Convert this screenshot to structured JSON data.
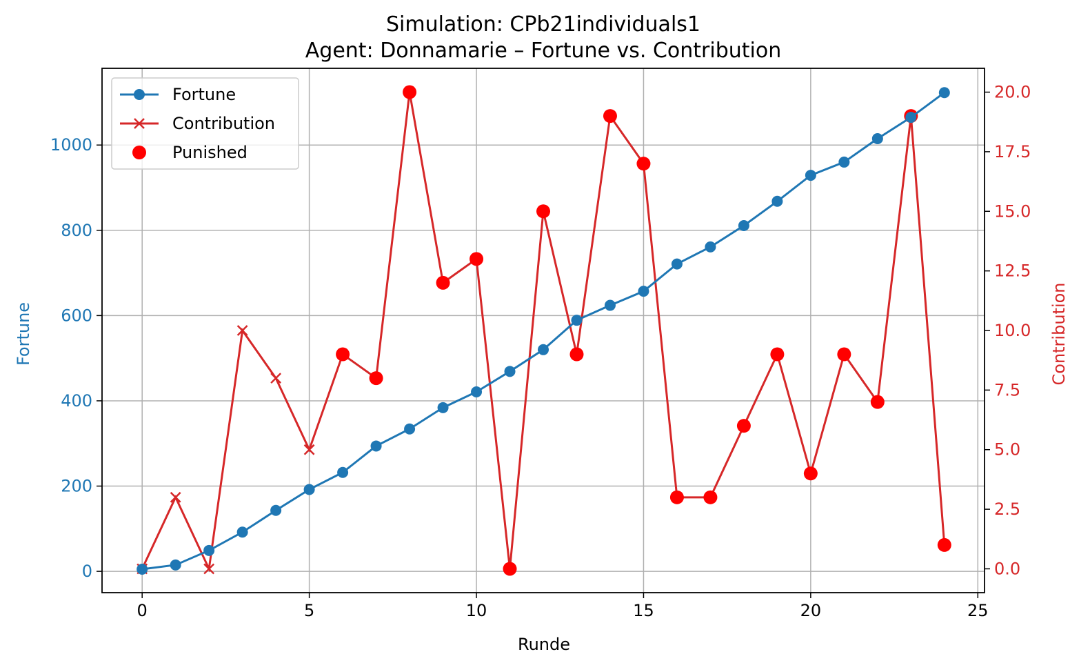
{
  "title": "Simulation: CPb21individuals1",
  "subtitle": "Agent: Donnamarie – Fortune vs. Contribution",
  "colors": {
    "fortune": "#1f77b4",
    "contribution": "#d62728",
    "punished": "#ff0000",
    "grid": "#b0b0b0",
    "axis": "#000000"
  },
  "chart_data": {
    "type": "line",
    "title": "Simulation: CPb21individuals1",
    "subtitle": "Agent: Donnamarie – Fortune vs. Contribution",
    "xlabel": "Runde",
    "ylabel_left": "Fortune",
    "ylabel_right": "Contribution",
    "xlim": [
      -1.2,
      25.2
    ],
    "ylim_left": [
      -50,
      1180
    ],
    "ylim_right": [
      -1,
      21
    ],
    "x_ticks": [
      0,
      5,
      10,
      15,
      20,
      25
    ],
    "y_left_ticks": [
      0,
      200,
      400,
      600,
      800,
      1000
    ],
    "y_right_ticks": [
      "0.0",
      "2.5",
      "5.0",
      "7.5",
      "10.0",
      "12.5",
      "15.0",
      "17.5",
      "20.0"
    ],
    "grid": true,
    "legend_position": "upper left",
    "x": [
      0,
      1,
      2,
      3,
      4,
      5,
      6,
      7,
      8,
      9,
      10,
      11,
      12,
      13,
      14,
      15,
      16,
      17,
      18,
      19,
      20,
      21,
      22,
      23,
      24
    ],
    "series": [
      {
        "name": "Fortune",
        "axis": "left",
        "marker": "circle",
        "values": [
          5,
          15,
          49,
          92,
          143,
          192,
          232,
          294,
          334,
          384,
          421,
          469,
          520,
          589,
          624,
          657,
          721,
          761,
          811,
          868,
          929,
          960,
          1015,
          1065,
          1123
        ]
      },
      {
        "name": "Contribution",
        "axis": "right",
        "marker": "x",
        "values": [
          0,
          3,
          0,
          10,
          8,
          5,
          9,
          8,
          20,
          12,
          13,
          0,
          15,
          9,
          19,
          17,
          3,
          3,
          6,
          9,
          4,
          9,
          7,
          19,
          1
        ]
      },
      {
        "name": "Punished",
        "axis": "right",
        "marker": "dot",
        "x": [
          6,
          7,
          8,
          9,
          10,
          11,
          12,
          13,
          14,
          15,
          16,
          17,
          18,
          19,
          20,
          21,
          22,
          23,
          24
        ],
        "values": [
          9,
          8,
          20,
          12,
          13,
          0,
          15,
          9,
          19,
          17,
          3,
          3,
          6,
          9,
          4,
          9,
          7,
          19,
          1
        ]
      }
    ]
  }
}
